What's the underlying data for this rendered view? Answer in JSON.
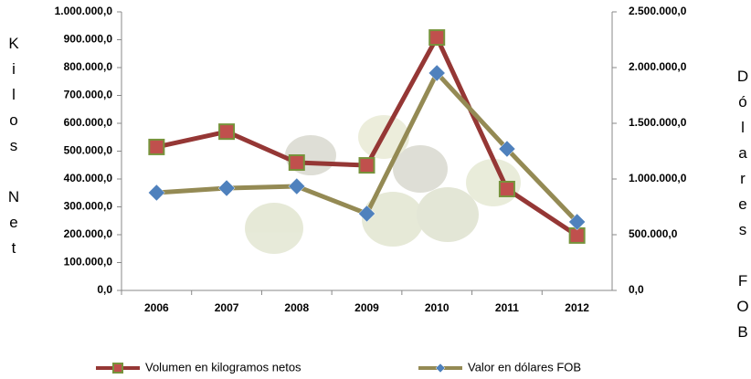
{
  "chart_data": {
    "type": "line",
    "categories": [
      "2006",
      "2007",
      "2008",
      "2009",
      "2010",
      "2011",
      "2012"
    ],
    "ylabel": "Kilos Net",
    "y2label": "Dólares FOB",
    "ylim": [
      0,
      1000000
    ],
    "yticks": [
      {
        "value": 0,
        "label": "0,0"
      },
      {
        "value": 100000,
        "label": "100.000,0"
      },
      {
        "value": 200000,
        "label": "200.000,0"
      },
      {
        "value": 300000,
        "label": "300.000,0"
      },
      {
        "value": 400000,
        "label": "400.000,0"
      },
      {
        "value": 500000,
        "label": "500.000,0"
      },
      {
        "value": 600000,
        "label": "600.000,0"
      },
      {
        "value": 700000,
        "label": "700.000,0"
      },
      {
        "value": 800000,
        "label": "800.000,0"
      },
      {
        "value": 900000,
        "label": "900.000,0"
      },
      {
        "value": 1000000,
        "label": "1.000.000,0"
      }
    ],
    "y2lim": [
      0,
      2500000
    ],
    "y2ticks": [
      {
        "value": 0,
        "label": "0,0"
      },
      {
        "value": 500000,
        "label": "500.000,0"
      },
      {
        "value": 1000000,
        "label": "1.000.000,0"
      },
      {
        "value": 1500000,
        "label": "1.500.000,0"
      },
      {
        "value": 2000000,
        "label": "2.000.000,0"
      },
      {
        "value": 2500000,
        "label": "2.500.000,0"
      }
    ],
    "series": [
      {
        "name": "Volumen en kilogramos netos",
        "color": "#953735",
        "marker_color": "#c0504d",
        "values": [
          515000,
          570000,
          459000,
          449000,
          908000,
          364000,
          197000
        ]
      },
      {
        "name": "Valor en dólares FOB",
        "color": "#948a54",
        "marker_color": "#4f81bd",
        "axis": "y2",
        "values": [
          877000,
          918000,
          934000,
          689000,
          1951000,
          1270000,
          615000
        ]
      }
    ]
  }
}
